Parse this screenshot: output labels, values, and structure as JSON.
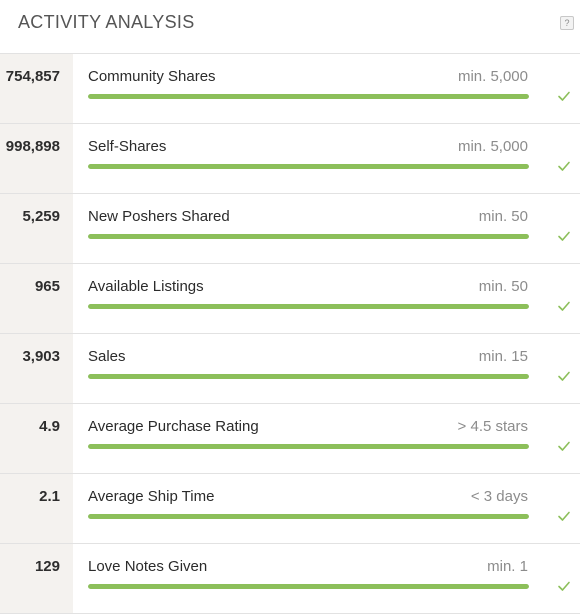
{
  "header": {
    "title": "ACTIVITY ANALYSIS",
    "help_label": "?"
  },
  "colors": {
    "progress_fill": "#8cbf5a",
    "progress_track": "#e4e4e4",
    "check": "#8cbf5a",
    "value_cell_bg": "#f4f2ef"
  },
  "metrics": [
    {
      "value": "754,857",
      "label": "Community Shares",
      "requirement": "min. 5,000",
      "progress": 1,
      "met": true
    },
    {
      "value": "998,898",
      "label": "Self-Shares",
      "requirement": "min. 5,000",
      "progress": 1,
      "met": true
    },
    {
      "value": "5,259",
      "label": "New Poshers Shared",
      "requirement": "min. 50",
      "progress": 1,
      "met": true
    },
    {
      "value": "965",
      "label": "Available Listings",
      "requirement": "min. 50",
      "progress": 1,
      "met": true
    },
    {
      "value": "3,903",
      "label": "Sales",
      "requirement": "min. 15",
      "progress": 1,
      "met": true
    },
    {
      "value": "4.9",
      "label": "Average Purchase Rating",
      "requirement": "> 4.5 stars",
      "progress": 1,
      "met": true
    },
    {
      "value": "2.1",
      "label": "Average Ship Time",
      "requirement": "< 3 days",
      "progress": 1,
      "met": true
    },
    {
      "value": "129",
      "label": "Love Notes Given",
      "requirement": "min. 1",
      "progress": 1,
      "met": true
    }
  ]
}
